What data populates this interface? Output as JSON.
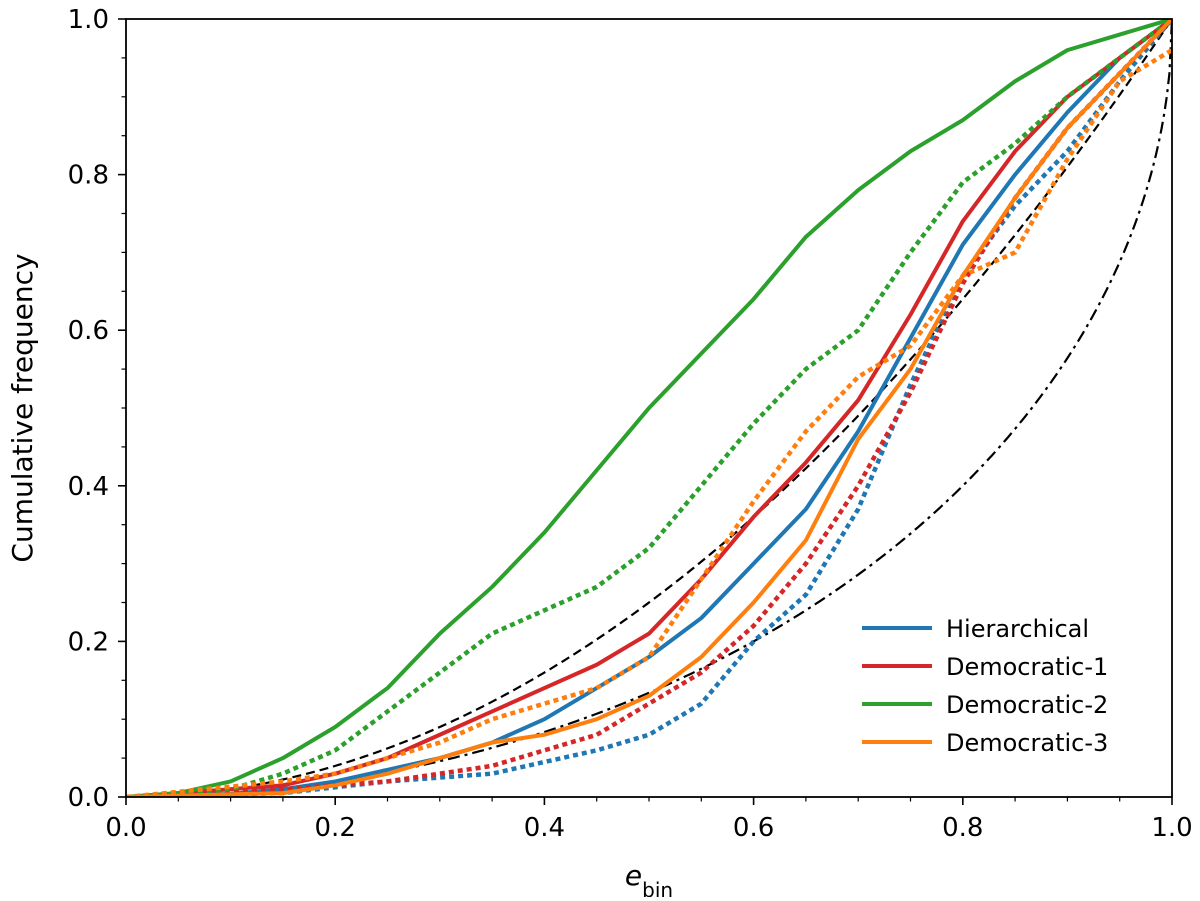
{
  "chart_data": {
    "type": "line",
    "xlabel_main": "e",
    "xlabel_sub": "bin",
    "ylabel": "Cumulative frequency",
    "xlim": [
      0.0,
      1.0
    ],
    "ylim": [
      0.0,
      1.0
    ],
    "xticks": [
      "0.0",
      "0.2",
      "0.4",
      "0.6",
      "0.8",
      "1.0"
    ],
    "yticks": [
      "0.0",
      "0.2",
      "0.4",
      "0.6",
      "0.8",
      "1.0"
    ],
    "grid": false,
    "legend_position": "lower-right",
    "series": [
      {
        "name": "Hierarchical",
        "color": "#1f77b4",
        "style": "solid",
        "x": [
          0.0,
          0.1,
          0.15,
          0.2,
          0.25,
          0.3,
          0.35,
          0.4,
          0.45,
          0.5,
          0.55,
          0.6,
          0.65,
          0.7,
          0.75,
          0.8,
          0.85,
          0.9,
          0.95,
          1.0
        ],
        "y": [
          0.0,
          0.004,
          0.01,
          0.02,
          0.035,
          0.05,
          0.07,
          0.1,
          0.14,
          0.18,
          0.23,
          0.3,
          0.37,
          0.47,
          0.59,
          0.71,
          0.8,
          0.88,
          0.95,
          1.0
        ]
      },
      {
        "name": "Hierarchical (dotted)",
        "color": "#1f77b4",
        "style": "dotted",
        "x": [
          0.0,
          0.15,
          0.25,
          0.35,
          0.45,
          0.5,
          0.55,
          0.6,
          0.65,
          0.7,
          0.75,
          0.8,
          0.85,
          0.9,
          0.95,
          1.0
        ],
        "y": [
          0.0,
          0.005,
          0.02,
          0.03,
          0.06,
          0.08,
          0.12,
          0.2,
          0.26,
          0.37,
          0.53,
          0.67,
          0.76,
          0.83,
          0.92,
          1.0
        ]
      },
      {
        "name": "Democratic-1",
        "color": "#d62728",
        "style": "solid",
        "x": [
          0.0,
          0.1,
          0.15,
          0.2,
          0.25,
          0.3,
          0.35,
          0.4,
          0.45,
          0.5,
          0.55,
          0.6,
          0.65,
          0.7,
          0.75,
          0.8,
          0.85,
          0.9,
          0.95,
          1.0
        ],
        "y": [
          0.0,
          0.01,
          0.015,
          0.03,
          0.05,
          0.08,
          0.11,
          0.14,
          0.17,
          0.21,
          0.28,
          0.36,
          0.43,
          0.51,
          0.62,
          0.74,
          0.83,
          0.9,
          0.95,
          1.0
        ]
      },
      {
        "name": "Democratic-1 (dotted)",
        "color": "#d62728",
        "style": "dotted",
        "x": [
          0.0,
          0.15,
          0.25,
          0.35,
          0.45,
          0.5,
          0.55,
          0.6,
          0.65,
          0.7,
          0.75,
          0.8,
          0.85,
          0.9,
          0.95,
          1.0
        ],
        "y": [
          0.0,
          0.01,
          0.02,
          0.04,
          0.08,
          0.12,
          0.16,
          0.22,
          0.3,
          0.4,
          0.52,
          0.66,
          0.77,
          0.86,
          0.93,
          1.0
        ]
      },
      {
        "name": "Democratic-2",
        "color": "#2ca02c",
        "style": "solid",
        "x": [
          0.0,
          0.05,
          0.1,
          0.15,
          0.2,
          0.25,
          0.3,
          0.35,
          0.4,
          0.45,
          0.5,
          0.55,
          0.6,
          0.65,
          0.7,
          0.75,
          0.8,
          0.85,
          0.9,
          0.95,
          1.0
        ],
        "y": [
          0.0,
          0.005,
          0.02,
          0.05,
          0.09,
          0.14,
          0.21,
          0.27,
          0.34,
          0.42,
          0.5,
          0.57,
          0.64,
          0.72,
          0.78,
          0.83,
          0.87,
          0.92,
          0.96,
          0.98,
          1.0
        ]
      },
      {
        "name": "Democratic-2 (dotted)",
        "color": "#2ca02c",
        "style": "dotted",
        "x": [
          0.0,
          0.1,
          0.15,
          0.2,
          0.25,
          0.3,
          0.35,
          0.4,
          0.45,
          0.5,
          0.55,
          0.6,
          0.65,
          0.7,
          0.75,
          0.8,
          0.85,
          0.9,
          0.95,
          1.0
        ],
        "y": [
          0.0,
          0.01,
          0.03,
          0.06,
          0.11,
          0.16,
          0.21,
          0.24,
          0.27,
          0.32,
          0.4,
          0.48,
          0.55,
          0.6,
          0.7,
          0.79,
          0.84,
          0.9,
          0.95,
          1.0
        ]
      },
      {
        "name": "Democratic-3",
        "color": "#ff7f0e",
        "style": "solid",
        "x": [
          0.0,
          0.15,
          0.2,
          0.25,
          0.3,
          0.35,
          0.4,
          0.45,
          0.5,
          0.55,
          0.6,
          0.65,
          0.7,
          0.75,
          0.8,
          0.85,
          0.9,
          0.95,
          1.0
        ],
        "y": [
          0.0,
          0.005,
          0.015,
          0.03,
          0.05,
          0.07,
          0.08,
          0.1,
          0.13,
          0.18,
          0.25,
          0.33,
          0.46,
          0.55,
          0.67,
          0.77,
          0.86,
          0.93,
          1.0
        ]
      },
      {
        "name": "Democratic-3 (dotted)",
        "color": "#ff7f0e",
        "style": "dotted",
        "x": [
          0.0,
          0.15,
          0.2,
          0.25,
          0.3,
          0.35,
          0.4,
          0.45,
          0.5,
          0.55,
          0.6,
          0.65,
          0.7,
          0.75,
          0.8,
          0.85,
          0.9,
          0.95,
          1.0
        ],
        "y": [
          0.0,
          0.02,
          0.03,
          0.05,
          0.07,
          0.1,
          0.12,
          0.14,
          0.18,
          0.28,
          0.38,
          0.47,
          0.54,
          0.58,
          0.67,
          0.7,
          0.82,
          0.92,
          0.96
        ]
      }
    ],
    "reference_curves": [
      {
        "formula": "e^2",
        "color": "#000000",
        "style": "dashed"
      },
      {
        "formula": "1 - sqrt(1 - e^2)",
        "color": "#000000",
        "style": "dashdot"
      }
    ],
    "legend": [
      "Hierarchical",
      "Democratic-1",
      "Democratic-2",
      "Democratic-3"
    ],
    "legend_colors": [
      "#1f77b4",
      "#d62728",
      "#2ca02c",
      "#ff7f0e"
    ]
  }
}
